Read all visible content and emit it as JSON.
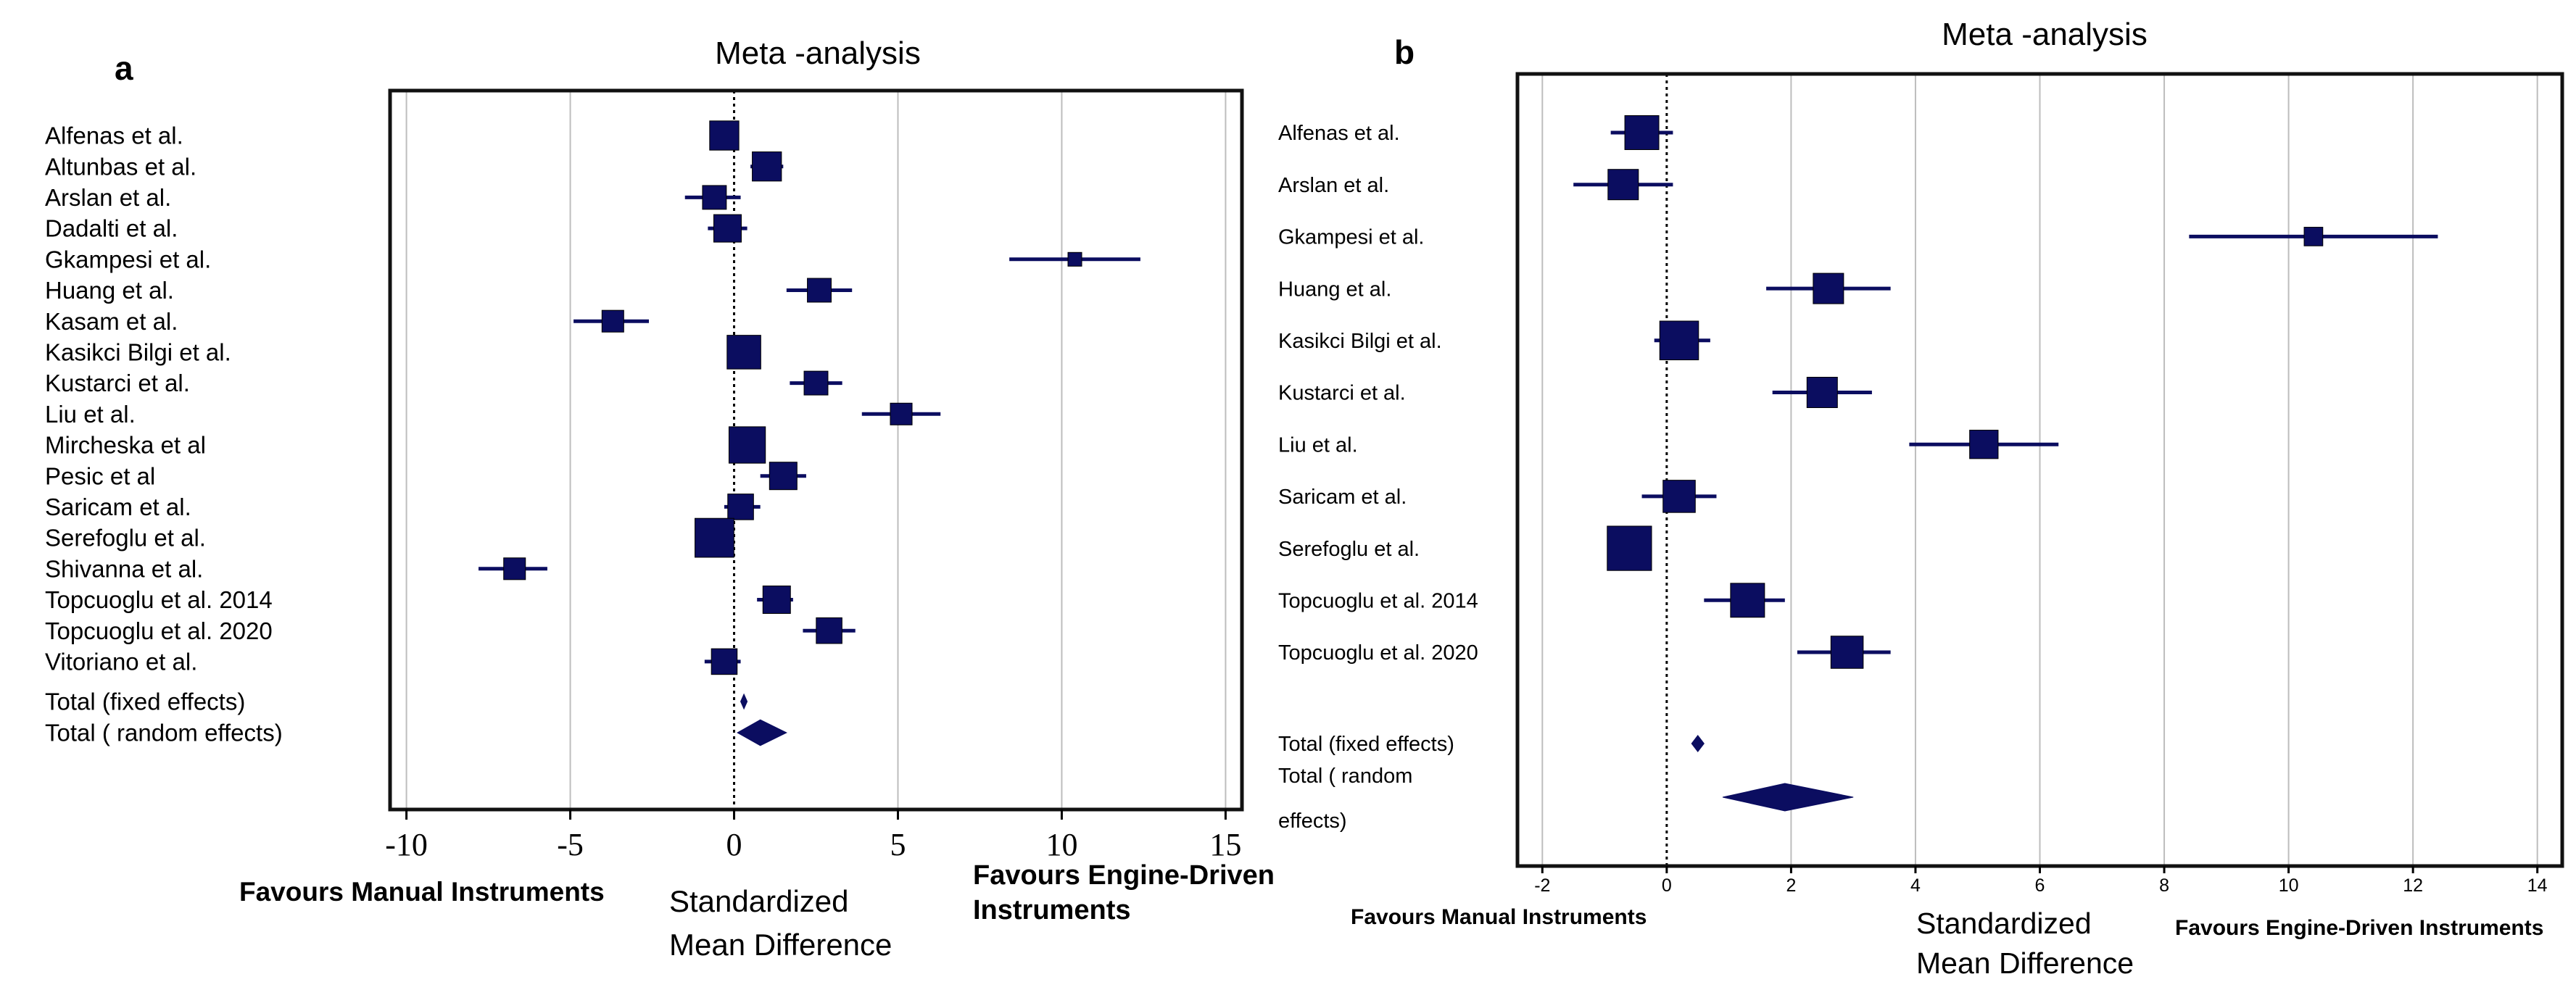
{
  "colors": {
    "marker": "#0b0d60",
    "frame": "#111111",
    "grid": "#bdbdbd",
    "text": "#000000"
  },
  "chart_data": [
    {
      "type": "forest",
      "panel_label": "a",
      "title": "Meta -analysis",
      "xlabel": "Standardized Mean Difference",
      "xlabel_lines": [
        "Standardized",
        "Mean Difference"
      ],
      "favours_left": "Favours Manual Instruments",
      "favours_right_lines": [
        "Favours Engine-Driven",
        "Instruments"
      ],
      "xlim": [
        -10.5,
        15.5
      ],
      "xticks": [
        -10,
        -5,
        0,
        5,
        10,
        15
      ],
      "xtick_labels": [
        "-10",
        "-5",
        "0",
        "5",
        "10",
        "15"
      ],
      "grid": true,
      "reference_line": 0,
      "studies": [
        {
          "label": "Alfenas et al.",
          "smd": -0.3,
          "lower": -0.6,
          "upper": 0.1,
          "weight": 4.5
        },
        {
          "label": "Altunbas et al.",
          "smd": 1.0,
          "lower": 0.5,
          "upper": 1.5,
          "weight": 4.5
        },
        {
          "label": "Arslan et al.",
          "smd": -0.6,
          "lower": -1.5,
          "upper": 0.2,
          "weight": 3.0
        },
        {
          "label": "Dadalti et al.",
          "smd": -0.2,
          "lower": -0.8,
          "upper": 0.4,
          "weight": 4.0
        },
        {
          "label": "Gkampesi et al.",
          "smd": 10.4,
          "lower": 8.4,
          "upper": 12.4,
          "weight": 1.0
        },
        {
          "label": "Huang et al.",
          "smd": 2.6,
          "lower": 1.6,
          "upper": 3.6,
          "weight": 3.0
        },
        {
          "label": "Kasam et al.",
          "smd": -3.7,
          "lower": -4.9,
          "upper": -2.6,
          "weight": 2.5
        },
        {
          "label": "Kasikci Bilgi et al.",
          "smd": 0.3,
          "lower": 0.1,
          "upper": 0.6,
          "weight": 6.0
        },
        {
          "label": "Kustarci et al.",
          "smd": 2.5,
          "lower": 1.7,
          "upper": 3.3,
          "weight": 3.0
        },
        {
          "label": "Liu et al.",
          "smd": 5.1,
          "lower": 3.9,
          "upper": 6.3,
          "weight": 2.5
        },
        {
          "label": "Mircheska et al",
          "smd": 0.4,
          "lower": 0.2,
          "upper": 0.7,
          "weight": 7.0
        },
        {
          "label": "Pesic et al",
          "smd": 1.5,
          "lower": 0.8,
          "upper": 2.2,
          "weight": 4.0
        },
        {
          "label": "Saricam et al.",
          "smd": 0.2,
          "lower": -0.3,
          "upper": 0.8,
          "weight": 3.5
        },
        {
          "label": "Serefoglu et al.",
          "smd": -0.6,
          "lower": -0.8,
          "upper": -0.3,
          "weight": 8.0
        },
        {
          "label": "Shivanna et al.",
          "smd": -6.7,
          "lower": -7.8,
          "upper": -5.7,
          "weight": 2.5
        },
        {
          "label": "Topcuoglu et al. 2014",
          "smd": 1.3,
          "lower": 0.7,
          "upper": 1.8,
          "weight": 4.0
        },
        {
          "label": "Topcuoglu et al. 2020",
          "smd": 2.9,
          "lower": 2.1,
          "upper": 3.7,
          "weight": 3.5
        },
        {
          "label": "Vitoriano et al.",
          "smd": -0.3,
          "lower": -0.9,
          "upper": 0.2,
          "weight": 3.5
        }
      ],
      "totals": [
        {
          "label": "Total (fixed effects)",
          "smd": 0.3,
          "lower": 0.2,
          "upper": 0.4
        },
        {
          "label": "Total ( random effects)",
          "smd": 0.8,
          "lower": 0.1,
          "upper": 1.6
        }
      ]
    },
    {
      "type": "forest",
      "panel_label": "b",
      "title": "Meta -analysis",
      "xlabel": "Standardized Mean Difference",
      "xlabel_lines": [
        "Standardized",
        "Mean Difference"
      ],
      "favours_left": "Favours Manual Instruments",
      "favours_right_lines": [
        "Favours Engine-Driven Instruments"
      ],
      "xlim": [
        -2.4,
        14.4
      ],
      "xticks": [
        -2,
        0,
        2,
        4,
        6,
        8,
        10,
        12,
        14
      ],
      "xtick_labels": [
        "-2",
        "0",
        "2",
        "4",
        "6",
        "8",
        "10",
        "12",
        "14"
      ],
      "grid": true,
      "reference_line": 0,
      "studies": [
        {
          "label": "Alfenas et al.",
          "smd": -0.4,
          "lower": -0.9,
          "upper": 0.1,
          "weight": 5.0
        },
        {
          "label": "Arslan et al.",
          "smd": -0.7,
          "lower": -1.5,
          "upper": 0.1,
          "weight": 4.0
        },
        {
          "label": "Gkampesi et al.",
          "smd": 10.4,
          "lower": 8.4,
          "upper": 12.4,
          "weight": 1.5
        },
        {
          "label": "Huang et al.",
          "smd": 2.6,
          "lower": 1.6,
          "upper": 3.6,
          "weight": 4.0
        },
        {
          "label": "Kasikci Bilgi et al.",
          "smd": 0.2,
          "lower": -0.2,
          "upper": 0.7,
          "weight": 6.5
        },
        {
          "label": "Kustarci et al.",
          "smd": 2.5,
          "lower": 1.7,
          "upper": 3.3,
          "weight": 4.0
        },
        {
          "label": "Liu et al.",
          "smd": 5.1,
          "lower": 3.9,
          "upper": 6.3,
          "weight": 3.5
        },
        {
          "label": "Saricam et al.",
          "smd": 0.2,
          "lower": -0.4,
          "upper": 0.8,
          "weight": 4.5
        },
        {
          "label": "Serefoglu et al.",
          "smd": -0.6,
          "lower": -0.8,
          "upper": -0.3,
          "weight": 8.5
        },
        {
          "label": "Topcuoglu et al. 2014",
          "smd": 1.3,
          "lower": 0.6,
          "upper": 1.9,
          "weight": 5.0
        },
        {
          "label": "Topcuoglu et al. 2020",
          "smd": 2.9,
          "lower": 2.1,
          "upper": 3.6,
          "weight": 4.5
        }
      ],
      "totals": [
        {
          "label": "Total (fixed effects)",
          "smd": 0.5,
          "lower": 0.4,
          "upper": 0.6
        },
        {
          "label": "Total ( random effects)",
          "label_lines": [
            "Total ( random",
            "effects)"
          ],
          "smd": 1.9,
          "lower": 0.9,
          "upper": 3.0
        }
      ]
    }
  ]
}
